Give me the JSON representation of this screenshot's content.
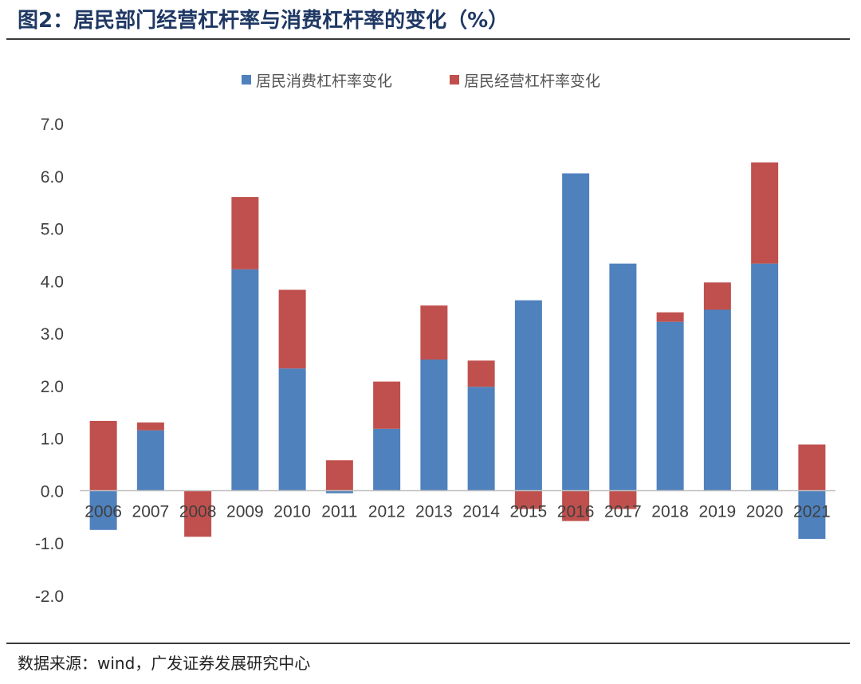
{
  "title": "图2：居民部门经营杠杆率与消费杠杆率的变化（%）",
  "source": "数据来源：wind，广发证券发展研究中心",
  "colors": {
    "consumer": "#4f81bd",
    "business": "#c0504d"
  },
  "chart_data": {
    "type": "bar",
    "stacked": true,
    "title": "",
    "xlabel": "",
    "ylabel": "",
    "ylim": [
      -2.0,
      7.0
    ],
    "yticks": [
      "7.0",
      "6.0",
      "5.0",
      "4.0",
      "3.0",
      "2.0",
      "1.0",
      "0.0",
      "-1.0",
      "-2.0"
    ],
    "grid": false,
    "legend_position": "top-center",
    "categories": [
      "2006",
      "2007",
      "2008",
      "2009",
      "2010",
      "2011",
      "2012",
      "2013",
      "2014",
      "2015",
      "2016",
      "2017",
      "2018",
      "2019",
      "2020",
      "2021"
    ],
    "series": [
      {
        "name": "居民消费杠杆率变化",
        "values": [
          -0.75,
          1.15,
          0,
          4.22,
          2.33,
          -0.05,
          1.18,
          2.5,
          1.98,
          3.63,
          6.05,
          4.33,
          3.22,
          3.45,
          4.33,
          -0.92
        ]
      },
      {
        "name": "居民经营杠杆率变化",
        "values": [
          1.33,
          0.15,
          -0.88,
          1.38,
          1.5,
          0.58,
          0.9,
          1.03,
          0.5,
          -0.35,
          -0.58,
          -0.35,
          0.18,
          0.52,
          1.93,
          0.88
        ]
      }
    ]
  }
}
